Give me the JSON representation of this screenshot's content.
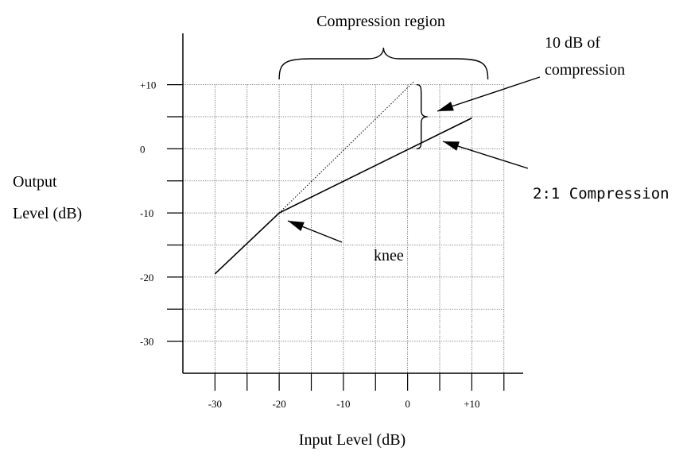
{
  "chart_data": {
    "type": "line",
    "xlabel": "Input Level (dB)",
    "ylabel_line1": "Output",
    "ylabel_line2": "Level (dB)",
    "xlim": [
      -35,
      18
    ],
    "ylim": [
      -35,
      18
    ],
    "x_tick_labels": [
      {
        "value": -30,
        "label": "-30"
      },
      {
        "value": -20,
        "label": "-20"
      },
      {
        "value": -10,
        "label": "-10"
      },
      {
        "value": 0,
        "label": "0"
      },
      {
        "value": 10,
        "label": "+10"
      }
    ],
    "y_tick_labels": [
      {
        "value": 10,
        "label": "+10"
      },
      {
        "value": 0,
        "label": "0"
      },
      {
        "value": -10,
        "label": "-10"
      },
      {
        "value": -20,
        "label": "-20"
      },
      {
        "value": -30,
        "label": "-30"
      }
    ],
    "minor_step": 5,
    "grid": true,
    "series": [
      {
        "style": "solid",
        "points": [
          [
            -30,
            -19.5
          ],
          [
            -20,
            -10
          ],
          [
            10,
            4.8
          ]
        ]
      },
      {
        "style": "dotted",
        "points": [
          [
            -20,
            -10
          ],
          [
            1,
            10.5
          ]
        ]
      }
    ],
    "knee": {
      "x": -20,
      "y": -10
    },
    "annotations": {
      "compression_region": "Compression region",
      "compression_amount_line1": "10 dB of",
      "compression_amount_line2": "compression",
      "knee": "knee",
      "ratio": "2:1 Compression"
    },
    "compression_region_range": [
      -20,
      12.5
    ],
    "compression_brace": {
      "x": 1,
      "y_low": 0,
      "y_high": 10
    }
  }
}
